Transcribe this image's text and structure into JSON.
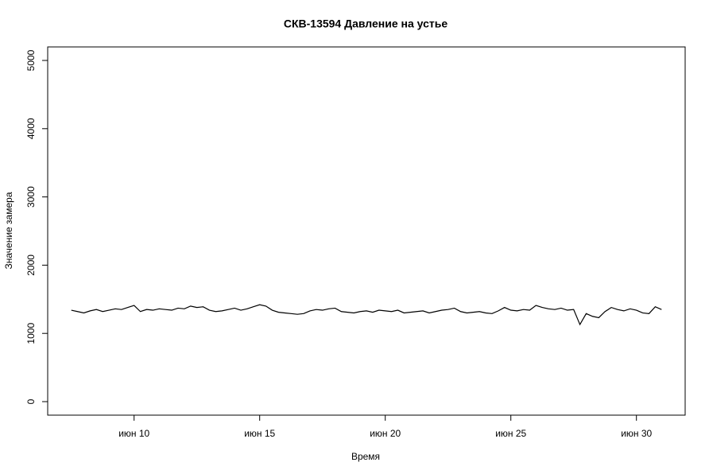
{
  "chart_data": {
    "type": "line",
    "title": "СКВ-13594 Давление на устье",
    "x_label": "Время",
    "y_label": "Значение замера",
    "color": "#000000",
    "x": [
      7.5,
      7.75,
      8,
      8.25,
      8.5,
      8.75,
      9,
      9.25,
      9.5,
      9.75,
      10,
      10.25,
      10.5,
      10.75,
      11,
      11.25,
      11.5,
      11.75,
      12,
      12.25,
      12.5,
      12.75,
      13,
      13.25,
      13.5,
      13.75,
      14,
      14.25,
      14.5,
      14.75,
      15,
      15.25,
      15.5,
      15.75,
      16,
      16.25,
      16.5,
      16.75,
      17,
      17.25,
      17.5,
      17.75,
      18,
      18.25,
      18.5,
      18.75,
      19,
      19.25,
      19.5,
      19.75,
      20,
      20.25,
      20.5,
      20.75,
      21,
      21.25,
      21.5,
      21.75,
      22,
      22.25,
      22.5,
      22.75,
      23,
      23.25,
      23.5,
      23.75,
      24,
      24.25,
      24.5,
      24.75,
      25,
      25.25,
      25.5,
      25.75,
      26,
      26.25,
      26.5,
      26.75,
      27,
      27.25,
      27.5,
      27.75,
      28,
      28.25,
      28.5,
      28.75,
      29,
      29.25,
      29.5,
      29.75,
      30,
      30.25,
      30.5,
      30.75,
      31
    ],
    "values": [
      1340,
      1320,
      1300,
      1330,
      1350,
      1320,
      1340,
      1360,
      1350,
      1380,
      1410,
      1320,
      1350,
      1340,
      1360,
      1350,
      1340,
      1370,
      1360,
      1400,
      1380,
      1390,
      1340,
      1320,
      1330,
      1350,
      1370,
      1340,
      1360,
      1390,
      1420,
      1400,
      1340,
      1310,
      1300,
      1290,
      1280,
      1290,
      1330,
      1350,
      1340,
      1360,
      1370,
      1320,
      1310,
      1300,
      1320,
      1330,
      1310,
      1340,
      1330,
      1320,
      1340,
      1300,
      1310,
      1320,
      1330,
      1300,
      1320,
      1340,
      1350,
      1370,
      1320,
      1300,
      1310,
      1320,
      1300,
      1290,
      1330,
      1380,
      1340,
      1330,
      1350,
      1340,
      1410,
      1380,
      1360,
      1350,
      1370,
      1340,
      1350,
      1130,
      1290,
      1250,
      1230,
      1320,
      1380,
      1350,
      1330,
      1360,
      1340,
      1300,
      1290,
      1390,
      1350
    ],
    "xlim": [
      6.56,
      31.94
    ],
    "xticks": [
      {
        "value": 10,
        "label": "июн 10"
      },
      {
        "value": 15,
        "label": "июн 15"
      },
      {
        "value": 20,
        "label": "июн 20"
      },
      {
        "value": 25,
        "label": "июн 25"
      },
      {
        "value": 30,
        "label": "июн 30"
      }
    ],
    "ylim": [
      -198,
      5198
    ],
    "yticks": [
      0,
      1000,
      2000,
      3000,
      4000,
      5000
    ]
  }
}
